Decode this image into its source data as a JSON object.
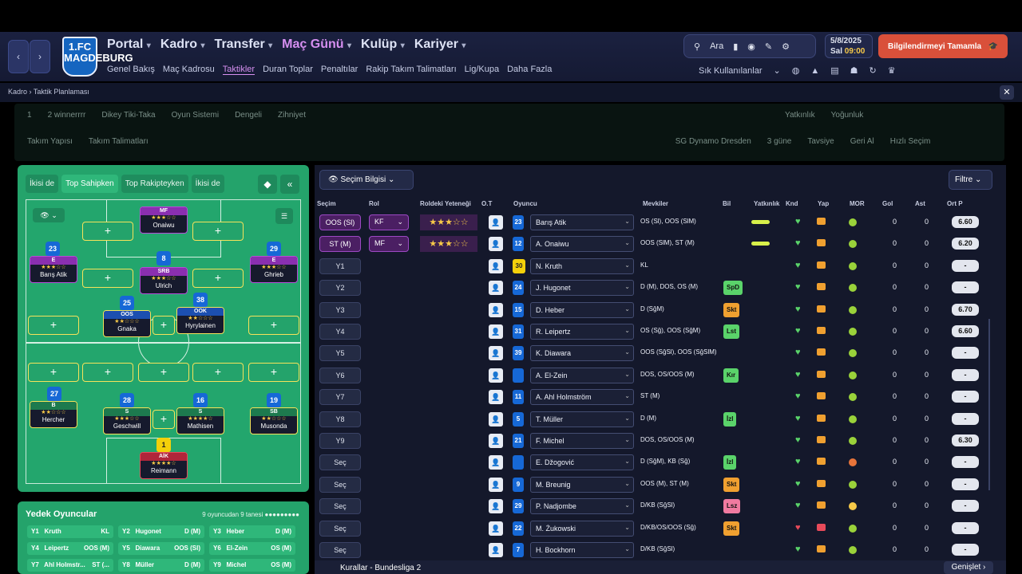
{
  "nav": {
    "back": "‹",
    "forward": "›",
    "logo": "1.FC MAGDEBURG",
    "main": [
      {
        "label": "Portal"
      },
      {
        "label": "Kadro"
      },
      {
        "label": "Transfer"
      },
      {
        "label": "Maç Günü"
      },
      {
        "label": "Kulüp"
      },
      {
        "label": "Kariyer"
      }
    ],
    "sub": [
      "Genel Bakış",
      "Maç Kadrosu",
      "Taktikler",
      "Duran Toplar",
      "Penaltılar",
      "Rakip Takım Talimatları",
      "Lig/Kupa",
      "Daha Fazla"
    ],
    "search": "Ara",
    "date": "5/8/2025",
    "day": "Sal",
    "time": "09:00",
    "continue": "Bilgilendirmeyi Tamamla",
    "quick": "Sık Kullanılanlar"
  },
  "breadcrumb": {
    "parent": "Kadro",
    "current": "Taktik Planlaması"
  },
  "tacticbar": {
    "slot": "1",
    "name": "2 winnerrrr",
    "style": "Dikey Tiki-Taka",
    "system": "Oyun Sistemi",
    "balance": "Dengeli",
    "mentality": "Zihniyet",
    "fam": "Yatkınlık",
    "fam2": "Yoğunluk",
    "tab1": "Takım Yapısı",
    "tab2": "Takım Talimatları",
    "next": "SG Dynamo Dresden",
    "nextdays": "3 güne",
    "advice": "Tavsiye",
    "apply": "Geri Al",
    "quicksel": "Hızlı Seçim"
  },
  "pitch": {
    "tabs": [
      "İkisi de",
      "Top Sahipken",
      "Top Rakipteyken",
      "İkisi de"
    ],
    "players": [
      {
        "num": "",
        "role": "MF",
        "name": "Onaiwu",
        "stars": "★★★☆☆"
      },
      {
        "num": "8",
        "role": "SRB",
        "name": "Ulrich",
        "stars": "★★★☆☆"
      },
      {
        "num": "23",
        "role": "E",
        "name": "Barış Atik",
        "stars": "★★★☆☆"
      },
      {
        "num": "29",
        "role": "E",
        "name": "Ghrieb",
        "stars": "★★★☆☆"
      },
      {
        "num": "25",
        "role": "OOS",
        "name": "Gnaka",
        "stars": "★★☆☆☆"
      },
      {
        "num": "38",
        "role": "OOK",
        "name": "Hyrylainen",
        "stars": "★★☆☆☆"
      },
      {
        "num": "27",
        "role": "B",
        "name": "Hercher",
        "stars": "★★☆☆☆"
      },
      {
        "num": "28",
        "role": "S",
        "name": "Geschwill",
        "stars": "★★★☆☆"
      },
      {
        "num": "16",
        "role": "S",
        "name": "Mathisen",
        "stars": "★★★★☆"
      },
      {
        "num": "19",
        "role": "SB",
        "name": "Musonda",
        "stars": "★★☆☆☆"
      },
      {
        "num": "1",
        "role": "AİK",
        "name": "Reimann",
        "stars": "★★★★☆"
      }
    ]
  },
  "subs": {
    "title": "Yedek Oyuncular",
    "count": "9 oyuncudan 9 tanesi",
    "list": [
      {
        "k": "Y1",
        "n": "Kruth",
        "p": "KL"
      },
      {
        "k": "Y2",
        "n": "Hugonet",
        "p": "D (M)"
      },
      {
        "k": "Y3",
        "n": "Heber",
        "p": "D (M)"
      },
      {
        "k": "Y4",
        "n": "Leipertz",
        "p": "OOS (M)"
      },
      {
        "k": "Y5",
        "n": "Diawara",
        "p": "OOS (Sl)"
      },
      {
        "k": "Y6",
        "n": "El-Zein",
        "p": "OS (M)"
      },
      {
        "k": "Y7",
        "n": "Ahl Holmstr...",
        "p": "ST (..."
      },
      {
        "k": "Y8",
        "n": "Müller",
        "p": "D (M)"
      },
      {
        "k": "Y9",
        "n": "Michel",
        "p": "OS (M)"
      }
    ]
  },
  "table": {
    "selinfo": "Seçim Bilgisi",
    "filter": "Filtre",
    "headers": [
      "Seçim",
      "Rol",
      "Roldeki Yeteneği",
      "O.T",
      "Oyuncu",
      "Mevkiler",
      "Bil",
      "Yatkınlık",
      "Knd",
      "Yap",
      "MOR",
      "Gol",
      "Ast",
      "Ort P"
    ],
    "rows": [
      {
        "sel": "OOS (Sl)",
        "role": "KF",
        "stars": "★★★☆☆",
        "num": "23",
        "name": "Barış Atik",
        "pos": "OS (Sl), OOS (SlM)",
        "bil": "",
        "bar": 38,
        "gol": "0",
        "ast": "0",
        "rat": "6.60"
      },
      {
        "sel": "ST (M)",
        "role": "MF",
        "stars": "★★★☆☆",
        "num": "12",
        "name": "A. Onaiwu",
        "pos": "OOS (SlM), ST (M)",
        "bil": "",
        "bar": 38,
        "gol": "0",
        "ast": "0",
        "rat": "6.20"
      },
      {
        "sel": "Y1",
        "num": "30",
        "name": "N. Kruth",
        "pos": "KL",
        "bil": "",
        "gol": "0",
        "ast": "0",
        "rat": "-"
      },
      {
        "sel": "Y2",
        "num": "24",
        "name": "J. Hugonet",
        "pos": "D (M), DOS, OS (M)",
        "bil": "SpD",
        "gol": "0",
        "ast": "0",
        "rat": "-"
      },
      {
        "sel": "Y3",
        "num": "15",
        "name": "D. Heber",
        "pos": "D (SğM)",
        "bil": "Skt",
        "gol": "0",
        "ast": "0",
        "rat": "6.70"
      },
      {
        "sel": "Y4",
        "num": "31",
        "name": "R. Leipertz",
        "pos": "OS (Sğ), OOS (SğM)",
        "bil": "Lst",
        "gol": "0",
        "ast": "0",
        "rat": "6.60"
      },
      {
        "sel": "Y5",
        "num": "39",
        "name": "K. Diawara",
        "pos": "OOS (SğSl), OOS (SğSlM)",
        "bil": "",
        "gol": "0",
        "ast": "0",
        "rat": "-"
      },
      {
        "sel": "Y6",
        "num": "",
        "name": "A. El-Zein",
        "pos": "DOS, OS/OOS (M)",
        "bil": "Kır",
        "gol": "0",
        "ast": "0",
        "rat": "-"
      },
      {
        "sel": "Y7",
        "num": "11",
        "name": "A. Ahl Holmström",
        "pos": "ST (M)",
        "bil": "",
        "gol": "0",
        "ast": "0",
        "rat": "-"
      },
      {
        "sel": "Y8",
        "num": "5",
        "name": "T. Müller",
        "pos": "D (M)",
        "bil": "İzl",
        "gol": "0",
        "ast": "0",
        "rat": "-"
      },
      {
        "sel": "Y9",
        "num": "21",
        "name": "F. Michel",
        "pos": "DOS, OS/OOS (M)",
        "bil": "",
        "gol": "0",
        "ast": "0",
        "rat": "6.30"
      },
      {
        "sel": "Seç",
        "num": "",
        "name": "E. Džogović",
        "pos": "D (SğM), KB (Sğ)",
        "bil": "İzl",
        "gol": "0",
        "ast": "0",
        "rat": "-"
      },
      {
        "sel": "Seç",
        "num": "9",
        "name": "M. Breunig",
        "pos": "OOS (M), ST (M)",
        "bil": "Skt",
        "gol": "0",
        "ast": "0",
        "rat": "-"
      },
      {
        "sel": "Seç",
        "num": "29",
        "name": "P. Nadjombe",
        "pos": "D/KB (SğSl)",
        "bil": "Lsz",
        "gol": "0",
        "ast": "0",
        "rat": "-"
      },
      {
        "sel": "Seç",
        "num": "22",
        "name": "M. Żukowski",
        "pos": "D/KB/OS/OOS (Sğ)",
        "bil": "Skt",
        "gol": "0",
        "ast": "0",
        "rat": "-"
      },
      {
        "sel": "Seç",
        "num": "7",
        "name": "H. Bockhorn",
        "pos": "D/KB (SğSl)",
        "bil": "",
        "gol": "0",
        "ast": "0",
        "rat": "-"
      }
    ]
  },
  "footer": {
    "rules": "Kurallar - Bundesliga 2",
    "expand": "Genişlet"
  },
  "colors": {
    "accent": "#d68ff0",
    "pitch": "#24a36b",
    "continue": "#d9503a",
    "spd": "#5ad36a",
    "skt": "#f0a030",
    "lst": "#5ad36a",
    "lsz": "#f07aa0",
    "kir": "#5ad36a",
    "izl": "#5ad36a"
  }
}
